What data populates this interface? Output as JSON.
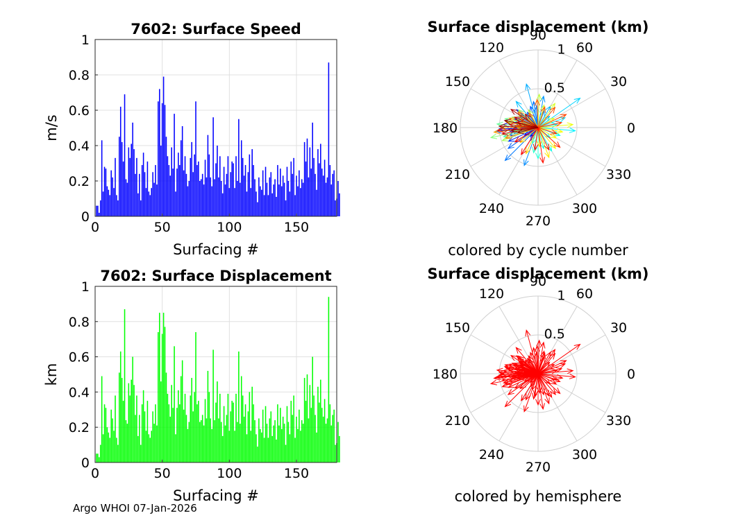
{
  "footer": "Argo WHOI 07-Jan-2026",
  "chart_data": [
    {
      "type": "bar",
      "title": "7602: Surface Speed",
      "xlabel": "Surfacing #",
      "ylabel": "m/s",
      "xlim": [
        0,
        180
      ],
      "ylim": [
        0,
        1
      ],
      "xticks": [
        "0",
        "50",
        "100",
        "150"
      ],
      "yticks": [
        "0",
        "0.2",
        "0.4",
        "0.6",
        "0.8",
        "1"
      ],
      "color": "#0000ff",
      "values": [
        0.06,
        0.06,
        0.02,
        0.09,
        0.43,
        0.14,
        0.28,
        0.27,
        0.17,
        0.15,
        0.12,
        0.26,
        0.22,
        0.16,
        0.33,
        0.12,
        0.09,
        0.45,
        0.62,
        0.42,
        0.31,
        0.69,
        0.21,
        0.19,
        0.39,
        0.33,
        0.41,
        0.53,
        0.38,
        0.24,
        0.33,
        0.13,
        0.24,
        0.09,
        0.29,
        0.36,
        0.25,
        0.16,
        0.31,
        0.14,
        0.12,
        0.16,
        0.25,
        0.19,
        0.29,
        0.18,
        0.65,
        0.72,
        0.4,
        0.64,
        0.79,
        0.63,
        0.45,
        0.34,
        0.29,
        0.23,
        0.39,
        0.27,
        0.58,
        0.14,
        0.27,
        0.36,
        0.29,
        0.43,
        0.51,
        0.26,
        0.34,
        0.24,
        0.17,
        0.2,
        0.33,
        0.42,
        0.25,
        0.35,
        0.65,
        0.29,
        0.31,
        0.2,
        0.21,
        0.24,
        0.18,
        0.32,
        0.22,
        0.46,
        0.35,
        0.22,
        0.17,
        0.56,
        0.21,
        0.3,
        0.4,
        0.22,
        0.34,
        0.2,
        0.13,
        0.28,
        0.18,
        0.24,
        0.34,
        0.16,
        0.25,
        0.31,
        0.3,
        0.16,
        0.34,
        0.2,
        0.55,
        0.19,
        0.43,
        0.33,
        0.23,
        0.29,
        0.14,
        0.25,
        0.35,
        0.16,
        0.38,
        0.29,
        0.21,
        0.14,
        0.08,
        0.22,
        0.17,
        0.15,
        0.26,
        0.12,
        0.28,
        0.19,
        0.12,
        0.22,
        0.25,
        0.13,
        0.18,
        0.21,
        0.11,
        0.29,
        0.18,
        0.27,
        0.17,
        0.23,
        0.19,
        0.09,
        0.28,
        0.2,
        0.14,
        0.31,
        0.24,
        0.33,
        0.12,
        0.23,
        0.17,
        0.26,
        0.16,
        0.21,
        0.19,
        0.42,
        0.31,
        0.44,
        0.22,
        0.39,
        0.27,
        0.53,
        0.33,
        0.24,
        0.15,
        0.38,
        0.3,
        0.41,
        0.27,
        0.23,
        0.32,
        0.19,
        0.22,
        0.87,
        0.29,
        0.18,
        0.24,
        0.26,
        0.09,
        0.1,
        0.2,
        0.13
      ]
    },
    {
      "type": "bar",
      "title": "7602: Surface Displacement",
      "xlabel": "Surfacing #",
      "ylabel": "km",
      "xlim": [
        0,
        180
      ],
      "ylim": [
        0,
        1
      ],
      "xticks": [
        "0",
        "50",
        "100",
        "150"
      ],
      "yticks": [
        "0",
        "0.2",
        "0.4",
        "0.6",
        "0.8",
        "1"
      ],
      "color": "#00ff00",
      "values": [
        0.05,
        0.05,
        0.03,
        0.1,
        0.49,
        0.16,
        0.33,
        0.31,
        0.2,
        0.17,
        0.14,
        0.3,
        0.25,
        0.18,
        0.38,
        0.14,
        0.1,
        0.51,
        0.63,
        0.48,
        0.35,
        0.87,
        0.24,
        0.22,
        0.45,
        0.38,
        0.47,
        0.6,
        0.44,
        0.27,
        0.38,
        0.15,
        0.27,
        0.1,
        0.33,
        0.41,
        0.29,
        0.18,
        0.35,
        0.16,
        0.14,
        0.18,
        0.29,
        0.22,
        0.33,
        0.21,
        0.74,
        0.85,
        0.46,
        0.73,
        0.85,
        0.77,
        0.51,
        0.39,
        0.33,
        0.26,
        0.44,
        0.31,
        0.66,
        0.16,
        0.31,
        0.41,
        0.33,
        0.49,
        0.58,
        0.3,
        0.39,
        0.27,
        0.19,
        0.23,
        0.38,
        0.48,
        0.29,
        0.4,
        0.74,
        0.33,
        0.35,
        0.23,
        0.24,
        0.27,
        0.21,
        0.36,
        0.25,
        0.52,
        0.4,
        0.25,
        0.19,
        0.64,
        0.24,
        0.34,
        0.46,
        0.25,
        0.39,
        0.23,
        0.15,
        0.32,
        0.21,
        0.27,
        0.39,
        0.18,
        0.29,
        0.35,
        0.34,
        0.18,
        0.39,
        0.23,
        0.63,
        0.22,
        0.49,
        0.38,
        0.26,
        0.33,
        0.16,
        0.29,
        0.4,
        0.18,
        0.43,
        0.33,
        0.24,
        0.16,
        0.09,
        0.25,
        0.19,
        0.17,
        0.3,
        0.14,
        0.32,
        0.22,
        0.14,
        0.25,
        0.29,
        0.15,
        0.21,
        0.24,
        0.13,
        0.33,
        0.21,
        0.31,
        0.19,
        0.26,
        0.22,
        0.1,
        0.32,
        0.23,
        0.16,
        0.35,
        0.27,
        0.38,
        0.14,
        0.26,
        0.19,
        0.3,
        0.18,
        0.24,
        0.22,
        0.48,
        0.35,
        0.5,
        0.25,
        0.44,
        0.31,
        0.6,
        0.38,
        0.27,
        0.17,
        0.43,
        0.34,
        0.47,
        0.31,
        0.26,
        0.36,
        0.22,
        0.25,
        0.94,
        0.33,
        0.21,
        0.27,
        0.3,
        0.1,
        0.11,
        0.23,
        0.15
      ]
    },
    {
      "type": "polar",
      "title": "Surface displacement (km)",
      "caption": "colored by cycle number",
      "rmax": 1,
      "rlabels": [
        "0.5",
        "1"
      ],
      "angle_labels": [
        "0",
        "30",
        "60",
        "90",
        "120",
        "150",
        "180",
        "210",
        "240",
        "270",
        "300",
        "330"
      ],
      "color_mode": "cycle",
      "vectors": [
        [
          0.18,
          172
        ],
        [
          0.12,
          200
        ],
        [
          0.25,
          155
        ],
        [
          0.35,
          190
        ],
        [
          0.22,
          165
        ],
        [
          0.3,
          178
        ],
        [
          0.15,
          230
        ],
        [
          0.28,
          145
        ],
        [
          0.4,
          185
        ],
        [
          0.33,
          160
        ],
        [
          0.2,
          210
        ],
        [
          0.45,
          175
        ],
        [
          0.38,
          195
        ],
        [
          0.26,
          150
        ],
        [
          0.5,
          182
        ],
        [
          0.31,
          168
        ],
        [
          0.19,
          240
        ],
        [
          0.42,
          205
        ],
        [
          0.36,
          140
        ],
        [
          0.24,
          125
        ],
        [
          0.55,
          185
        ],
        [
          0.29,
          110
        ],
        [
          0.47,
          215
        ],
        [
          0.34,
          100
        ],
        [
          0.6,
          225
        ],
        [
          0.27,
          95
        ],
        [
          0.52,
          250
        ],
        [
          0.41,
          80
        ],
        [
          0.23,
          70
        ],
        [
          0.58,
          105
        ],
        [
          0.32,
          60
        ],
        [
          0.44,
          130
        ],
        [
          0.21,
          45
        ],
        [
          0.66,
          35
        ],
        [
          0.37,
          20
        ],
        [
          0.25,
          10
        ],
        [
          0.48,
          355
        ],
        [
          0.3,
          340
        ],
        [
          0.2,
          320
        ],
        [
          0.35,
          300
        ],
        [
          0.28,
          285
        ],
        [
          0.4,
          270
        ],
        [
          0.33,
          260
        ],
        [
          0.22,
          250
        ],
        [
          0.46,
          195
        ],
        [
          0.39,
          170
        ],
        [
          0.27,
          180
        ],
        [
          0.53,
          175
        ],
        [
          0.44,
          165
        ],
        [
          0.31,
          188
        ],
        [
          0.62,
          192
        ],
        [
          0.36,
          158
        ],
        [
          0.29,
          148
        ],
        [
          0.49,
          200
        ],
        [
          0.34,
          138
        ],
        [
          0.26,
          118
        ],
        [
          0.43,
          88
        ],
        [
          0.3,
          75
        ],
        [
          0.38,
          55
        ],
        [
          0.24,
          30
        ],
        [
          0.45,
          5
        ],
        [
          0.32,
          350
        ],
        [
          0.27,
          330
        ],
        [
          0.35,
          310
        ],
        [
          0.41,
          290
        ],
        [
          0.25,
          275
        ],
        [
          0.37,
          245
        ],
        [
          0.3,
          220
        ],
        [
          0.48,
          180
        ],
        [
          0.42,
          170
        ],
        [
          0.29,
          176
        ],
        [
          0.57,
          186
        ],
        [
          0.39,
          162
        ],
        [
          0.26,
          154
        ],
        [
          0.44,
          198
        ],
        [
          0.33,
          142
        ],
        [
          0.22,
          122
        ],
        [
          0.36,
          92
        ],
        [
          0.28,
          72
        ],
        [
          0.34,
          50
        ],
        [
          0.4,
          25
        ],
        [
          0.31,
          12
        ],
        [
          0.25,
          342
        ],
        [
          0.38,
          318
        ],
        [
          0.32,
          296
        ],
        [
          0.46,
          278
        ],
        [
          0.29,
          262
        ],
        [
          0.41,
          238
        ],
        [
          0.35,
          212
        ],
        [
          0.52,
          184
        ],
        [
          0.37,
          174
        ],
        [
          0.28,
          166
        ],
        [
          0.47,
          190
        ],
        [
          0.33,
          156
        ],
        [
          0.42,
          146
        ],
        [
          0.24,
          134
        ],
        [
          0.5,
          178
        ],
        [
          0.35,
          186
        ],
        [
          0.27,
          194
        ],
        [
          0.44,
          168
        ]
      ]
    },
    {
      "type": "polar",
      "title": "Surface displacement (km)",
      "caption": "colored by hemisphere",
      "rmax": 1,
      "rlabels": [
        "0.5",
        "1"
      ],
      "angle_labels": [
        "0",
        "30",
        "60",
        "90",
        "120",
        "150",
        "180",
        "210",
        "240",
        "270",
        "300",
        "330"
      ],
      "color_mode": "single",
      "color": "#ff0000",
      "vectors": [
        [
          0.18,
          172
        ],
        [
          0.12,
          200
        ],
        [
          0.25,
          155
        ],
        [
          0.35,
          190
        ],
        [
          0.22,
          165
        ],
        [
          0.3,
          178
        ],
        [
          0.15,
          230
        ],
        [
          0.28,
          145
        ],
        [
          0.4,
          185
        ],
        [
          0.33,
          160
        ],
        [
          0.2,
          210
        ],
        [
          0.45,
          175
        ],
        [
          0.38,
          195
        ],
        [
          0.26,
          150
        ],
        [
          0.5,
          182
        ],
        [
          0.31,
          168
        ],
        [
          0.19,
          240
        ],
        [
          0.42,
          205
        ],
        [
          0.36,
          140
        ],
        [
          0.24,
          125
        ],
        [
          0.55,
          185
        ],
        [
          0.29,
          110
        ],
        [
          0.47,
          215
        ],
        [
          0.34,
          100
        ],
        [
          0.6,
          225
        ],
        [
          0.27,
          95
        ],
        [
          0.52,
          250
        ],
        [
          0.41,
          80
        ],
        [
          0.23,
          70
        ],
        [
          0.58,
          105
        ],
        [
          0.32,
          60
        ],
        [
          0.44,
          130
        ],
        [
          0.21,
          45
        ],
        [
          0.66,
          35
        ],
        [
          0.37,
          20
        ],
        [
          0.25,
          10
        ],
        [
          0.48,
          355
        ],
        [
          0.3,
          340
        ],
        [
          0.2,
          320
        ],
        [
          0.35,
          300
        ],
        [
          0.28,
          285
        ],
        [
          0.4,
          270
        ],
        [
          0.33,
          260
        ],
        [
          0.22,
          250
        ],
        [
          0.46,
          195
        ],
        [
          0.39,
          170
        ],
        [
          0.27,
          180
        ],
        [
          0.53,
          175
        ],
        [
          0.44,
          165
        ],
        [
          0.31,
          188
        ],
        [
          0.62,
          192
        ],
        [
          0.36,
          158
        ],
        [
          0.29,
          148
        ],
        [
          0.49,
          200
        ],
        [
          0.34,
          138
        ],
        [
          0.26,
          118
        ],
        [
          0.43,
          88
        ],
        [
          0.3,
          75
        ],
        [
          0.38,
          55
        ],
        [
          0.24,
          30
        ],
        [
          0.45,
          5
        ],
        [
          0.32,
          350
        ],
        [
          0.27,
          330
        ],
        [
          0.35,
          310
        ],
        [
          0.41,
          290
        ],
        [
          0.25,
          275
        ],
        [
          0.37,
          245
        ],
        [
          0.3,
          220
        ],
        [
          0.48,
          180
        ],
        [
          0.42,
          170
        ],
        [
          0.29,
          176
        ],
        [
          0.57,
          186
        ],
        [
          0.39,
          162
        ],
        [
          0.26,
          154
        ],
        [
          0.44,
          198
        ],
        [
          0.33,
          142
        ],
        [
          0.22,
          122
        ],
        [
          0.36,
          92
        ],
        [
          0.28,
          72
        ],
        [
          0.34,
          50
        ],
        [
          0.4,
          25
        ],
        [
          0.31,
          12
        ],
        [
          0.25,
          342
        ],
        [
          0.38,
          318
        ],
        [
          0.32,
          296
        ],
        [
          0.46,
          278
        ],
        [
          0.29,
          262
        ],
        [
          0.41,
          238
        ],
        [
          0.35,
          212
        ],
        [
          0.52,
          184
        ],
        [
          0.37,
          174
        ],
        [
          0.28,
          166
        ],
        [
          0.47,
          190
        ],
        [
          0.33,
          156
        ],
        [
          0.42,
          146
        ],
        [
          0.24,
          134
        ],
        [
          0.5,
          178
        ],
        [
          0.35,
          186
        ],
        [
          0.27,
          194
        ],
        [
          0.44,
          168
        ]
      ]
    }
  ]
}
